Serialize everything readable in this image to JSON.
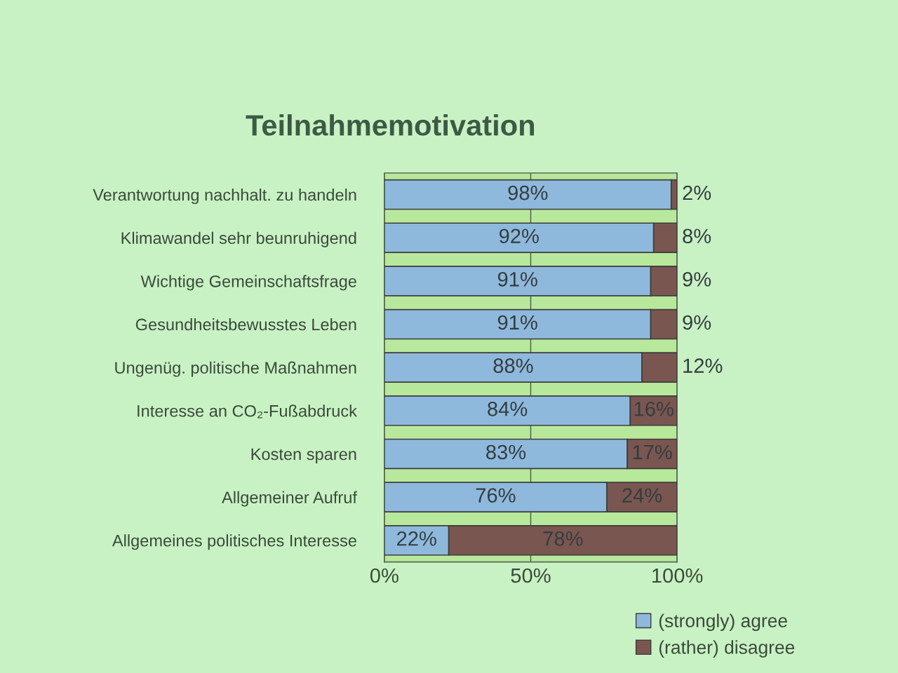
{
  "chart_data": {
    "type": "bar",
    "orientation": "horizontal",
    "stacked": true,
    "title": "Teilnahmemotivation",
    "categories": [
      "Verantwortung nachhalt. zu handeln",
      "Klimawandel sehr beunruhigend",
      "Wichtige Gemeinschaftsfrage",
      "Gesundheitsbewusstes Leben",
      "Ungenüg. politische Maßnahmen",
      "Interesse an CO₂-Fußabdruck",
      "Kosten sparen",
      "Allgemeiner Aufruf",
      "Allgemeines politisches Interesse"
    ],
    "series": [
      {
        "name": "(strongly) agree",
        "color": "#8fb9dc",
        "values": [
          98,
          92,
          91,
          91,
          88,
          84,
          83,
          76,
          22
        ],
        "value_labels": [
          "98%",
          "92%",
          "91%",
          "91%",
          "88%",
          "84%",
          "83%",
          "76%",
          "22%"
        ]
      },
      {
        "name": "(rather) disagree",
        "color": "#7a5650",
        "values": [
          2,
          8,
          9,
          9,
          12,
          16,
          17,
          24,
          78
        ],
        "value_labels": [
          "2%",
          "8%",
          "9%",
          "9%",
          "12%",
          "16%",
          "17%",
          "24%",
          "78%"
        ]
      }
    ],
    "xlim": [
      0,
      100
    ],
    "xticks": [
      {
        "value": 0,
        "label": "0%"
      },
      {
        "value": 50,
        "label": "50%"
      },
      {
        "value": 100,
        "label": "100%"
      }
    ],
    "grid": "x",
    "legend": "bottom right"
  }
}
